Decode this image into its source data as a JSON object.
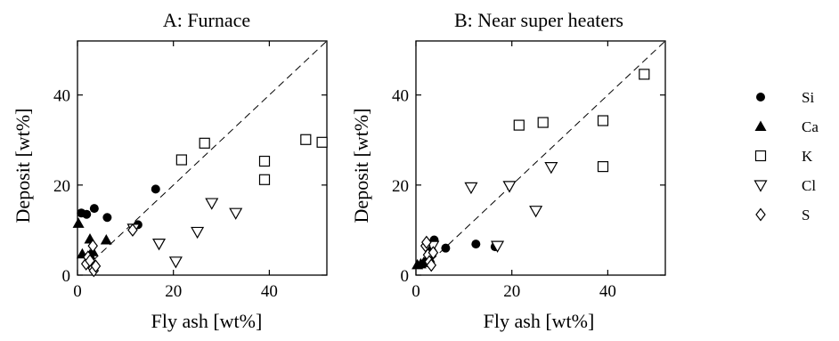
{
  "chart_data": [
    {
      "type": "scatter",
      "title": "A: Furnace",
      "xlabel": "Fly ash [wt%]",
      "ylabel": "Deposit [wt%]",
      "xlim": [
        0,
        52
      ],
      "ylim": [
        0,
        52
      ],
      "xticks": [
        0,
        20,
        40
      ],
      "yticks": [
        0,
        20,
        40
      ],
      "reference_line": "y = x (dashed)",
      "series": [
        {
          "name": "Si",
          "marker": "filled-circle",
          "points": [
            [
              0.8,
              13.8
            ],
            [
              1.9,
              13.5
            ],
            [
              3.5,
              14.8
            ],
            [
              6.2,
              12.8
            ],
            [
              12.6,
              11.2
            ],
            [
              16.3,
              19.1
            ]
          ]
        },
        {
          "name": "Ca",
          "marker": "filled-triangle",
          "points": [
            [
              0.2,
              11.5
            ],
            [
              1.0,
              4.7
            ],
            [
              2.6,
              8.0
            ],
            [
              2.6,
              4.5
            ],
            [
              3.0,
              3.2
            ],
            [
              3.2,
              5.2
            ],
            [
              6.0,
              7.8
            ]
          ]
        },
        {
          "name": "K",
          "marker": "open-square",
          "points": [
            [
              21.7,
              25.6
            ],
            [
              26.5,
              29.3
            ],
            [
              39.0,
              25.3
            ],
            [
              39.0,
              21.2
            ],
            [
              47.6,
              30.1
            ],
            [
              51.0,
              29.5
            ]
          ]
        },
        {
          "name": "Cl",
          "marker": "open-triangle-down",
          "points": [
            [
              11.7,
              10.3
            ],
            [
              17.0,
              7.0
            ],
            [
              20.5,
              3.0
            ],
            [
              25.0,
              9.6
            ],
            [
              28.0,
              16.0
            ],
            [
              33.0,
              13.8
            ]
          ]
        },
        {
          "name": "S",
          "marker": "open-diamond",
          "points": [
            [
              1.8,
              2.5
            ],
            [
              2.2,
              4.0
            ],
            [
              2.6,
              3.2
            ],
            [
              3.2,
              1.5
            ],
            [
              3.4,
              1.0
            ],
            [
              3.8,
              2.0
            ],
            [
              3.2,
              6.5
            ],
            [
              11.5,
              10.0
            ]
          ]
        }
      ]
    },
    {
      "type": "scatter",
      "title": "B: Near super heaters",
      "xlabel": "Fly ash [wt%]",
      "ylabel": "Deposit [wt%]",
      "xlim": [
        0,
        52
      ],
      "ylim": [
        0,
        52
      ],
      "xticks": [
        0,
        20,
        40
      ],
      "yticks": [
        0,
        20,
        40
      ],
      "reference_line": "y = x (dashed)",
      "series": [
        {
          "name": "Si",
          "marker": "filled-circle",
          "points": [
            [
              3.0,
              6.5
            ],
            [
              3.8,
              7.8
            ],
            [
              6.2,
              6.0
            ],
            [
              12.5,
              6.9
            ],
            [
              16.5,
              6.3
            ]
          ]
        },
        {
          "name": "Ca",
          "marker": "filled-triangle",
          "points": [
            [
              0.3,
              2.3
            ],
            [
              1.0,
              2.5
            ],
            [
              1.6,
              2.8
            ],
            [
              2.2,
              3.5
            ],
            [
              2.8,
              3.8
            ],
            [
              3.2,
              6.3
            ]
          ]
        },
        {
          "name": "K",
          "marker": "open-square",
          "points": [
            [
              21.5,
              33.3
            ],
            [
              26.5,
              33.9
            ],
            [
              39.0,
              34.3
            ],
            [
              39.0,
              24.1
            ],
            [
              47.6,
              44.6
            ]
          ]
        },
        {
          "name": "Cl",
          "marker": "open-triangle-down",
          "points": [
            [
              11.5,
              19.5
            ],
            [
              19.5,
              19.8
            ],
            [
              25.0,
              14.3
            ],
            [
              28.2,
              24.0
            ],
            [
              17.0,
              6.5
            ],
            [
              3.5,
              6.5
            ]
          ]
        },
        {
          "name": "S",
          "marker": "open-diamond",
          "points": [
            [
              2.0,
              6.5
            ],
            [
              2.5,
              4.5
            ],
            [
              2.8,
              3.0
            ],
            [
              3.2,
              2.2
            ],
            [
              3.6,
              5.0
            ],
            [
              2.2,
              7.3
            ]
          ]
        }
      ]
    }
  ],
  "legend": [
    {
      "label": "Si",
      "marker": "filled-circle"
    },
    {
      "label": "Ca",
      "marker": "filled-triangle"
    },
    {
      "label": "K",
      "marker": "open-square"
    },
    {
      "label": "Cl",
      "marker": "open-triangle-down"
    },
    {
      "label": "S",
      "marker": "open-diamond"
    }
  ]
}
